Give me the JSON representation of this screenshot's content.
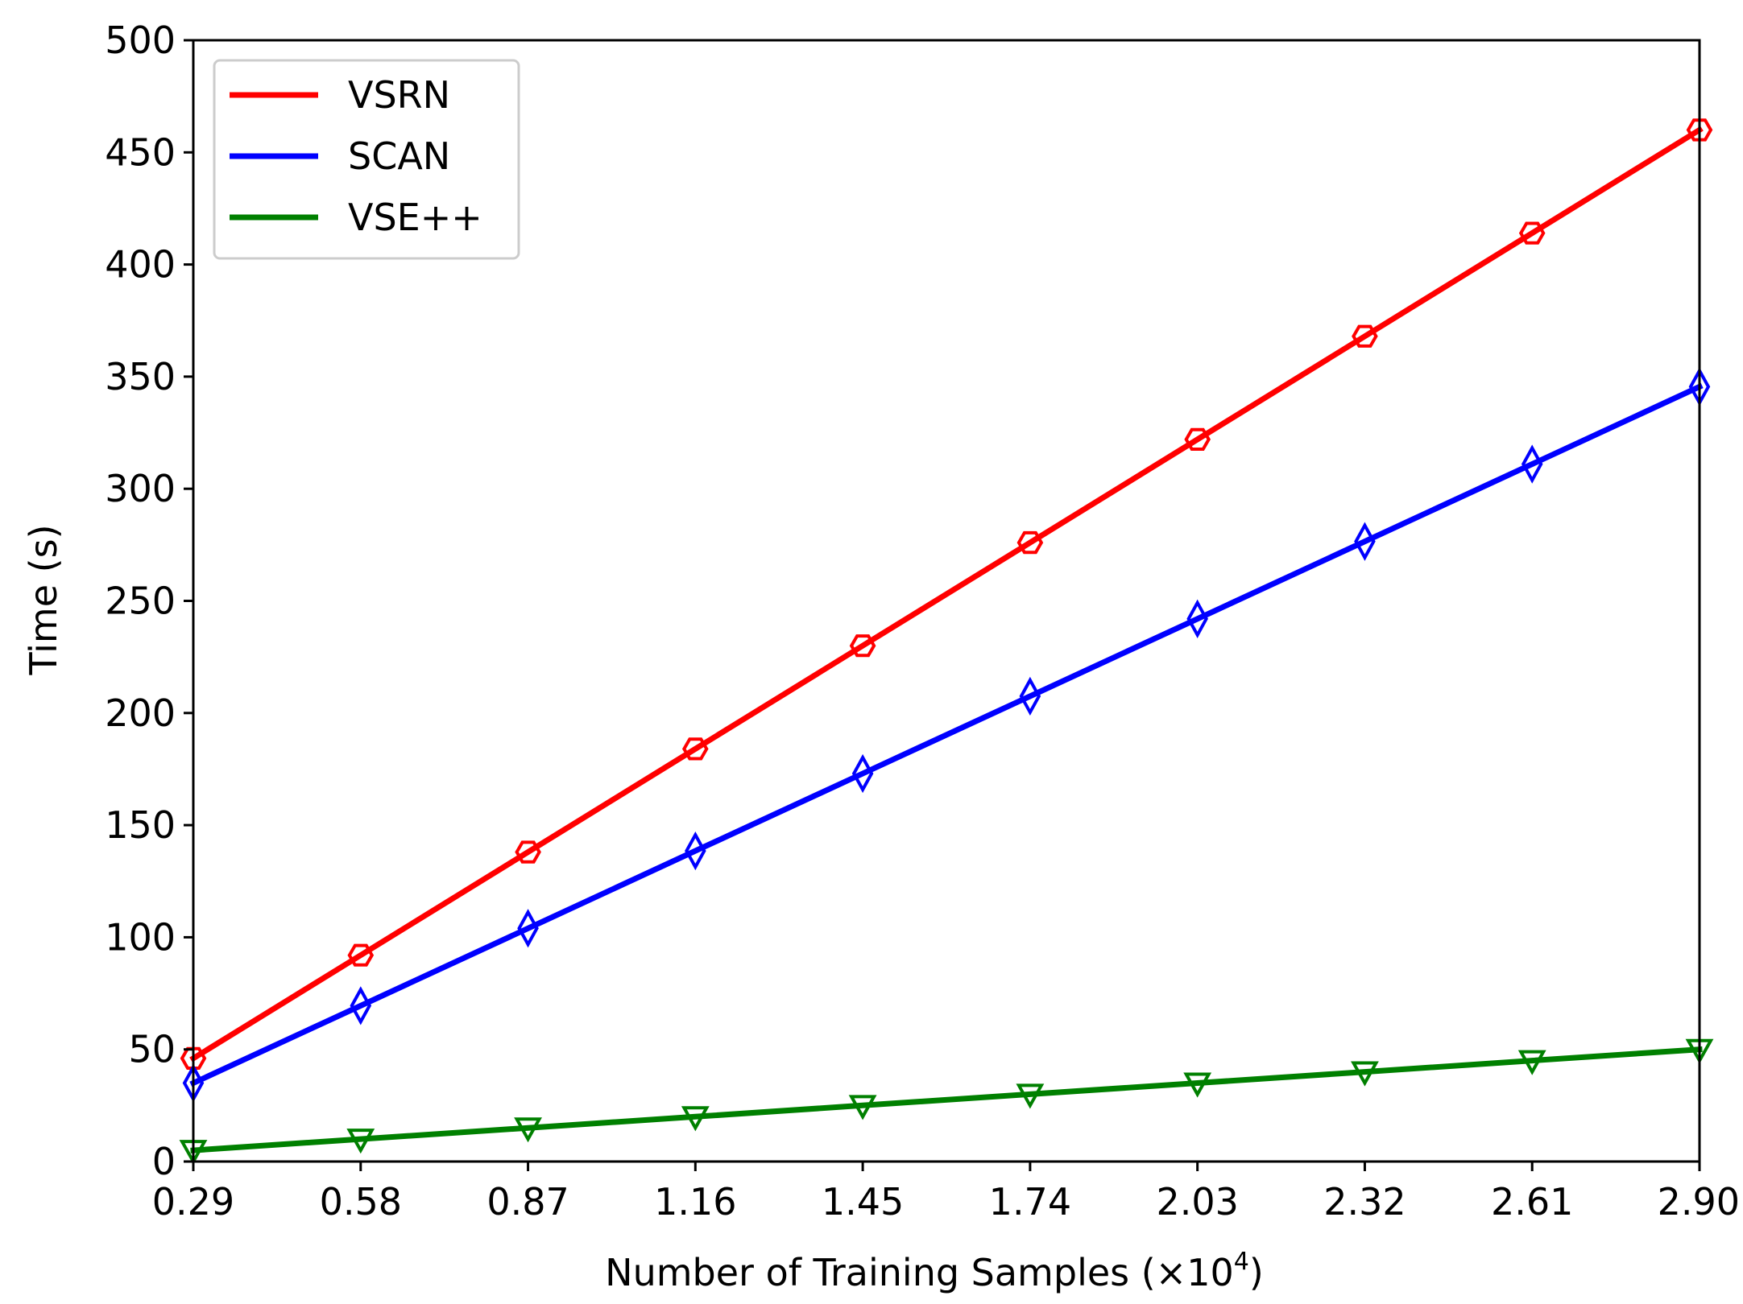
{
  "chart_data": {
    "type": "line",
    "title": "",
    "xlabel": "Number of Training Samples (×10",
    "xlabel_exponent": "4",
    "xlabel_close": ")",
    "ylabel": "Time (s)",
    "x": [
      0.29,
      0.58,
      0.87,
      1.16,
      1.45,
      1.74,
      2.03,
      2.32,
      2.61,
      2.9
    ],
    "xtick_labels": [
      "0.29",
      "0.58",
      "0.87",
      "1.16",
      "1.45",
      "1.74",
      "2.03",
      "2.32",
      "2.61",
      "2.90"
    ],
    "xlim": [
      0.29,
      2.9
    ],
    "ylim": [
      0,
      500
    ],
    "yticks": [
      0,
      50,
      100,
      150,
      200,
      250,
      300,
      350,
      400,
      450,
      500
    ],
    "ytick_labels": [
      "0",
      "50",
      "100",
      "150",
      "200",
      "250",
      "300",
      "350",
      "400",
      "450",
      "500"
    ],
    "grid": false,
    "legend_position": "top-left",
    "series": [
      {
        "name": "VSRN",
        "color": "#ff0000",
        "marker": "hexagon",
        "values": [
          46,
          92,
          138,
          184,
          230,
          276,
          322,
          368,
          414,
          460
        ]
      },
      {
        "name": "SCAN",
        "color": "#0000ff",
        "marker": "thin-diamond",
        "values": [
          35,
          69.5,
          104,
          138.5,
          173,
          207.5,
          242,
          276.5,
          311,
          345.5
        ]
      },
      {
        "name": "VSE++",
        "color": "#008000",
        "marker": "triangle-down",
        "values": [
          5,
          10,
          15,
          20,
          25,
          30,
          35,
          40,
          45,
          50
        ]
      }
    ]
  }
}
